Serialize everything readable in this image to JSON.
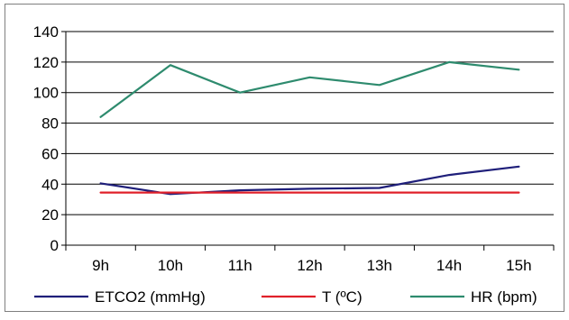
{
  "chart_data": {
    "type": "line",
    "categories": [
      "9h",
      "10h",
      "11h",
      "12h",
      "13h",
      "14h",
      "15h"
    ],
    "ylim": [
      0,
      140
    ],
    "yticks": [
      0,
      20,
      40,
      60,
      80,
      100,
      120,
      140
    ],
    "grid": true,
    "legend_position": "bottom",
    "series": [
      {
        "name": "ETCO2 (mmHg)",
        "color": "#1f1f7a",
        "values": [
          40.5,
          33.5,
          36.0,
          37.0,
          37.5,
          46.0,
          51.5
        ]
      },
      {
        "name": "T (ºC)",
        "color": "#e0202a",
        "values": [
          34.5,
          34.5,
          34.5,
          34.5,
          34.5,
          34.5,
          34.5
        ]
      },
      {
        "name": "HR (bpm)",
        "color": "#2e8b6e",
        "values": [
          84,
          118,
          100,
          110,
          105,
          120,
          115
        ]
      }
    ]
  }
}
